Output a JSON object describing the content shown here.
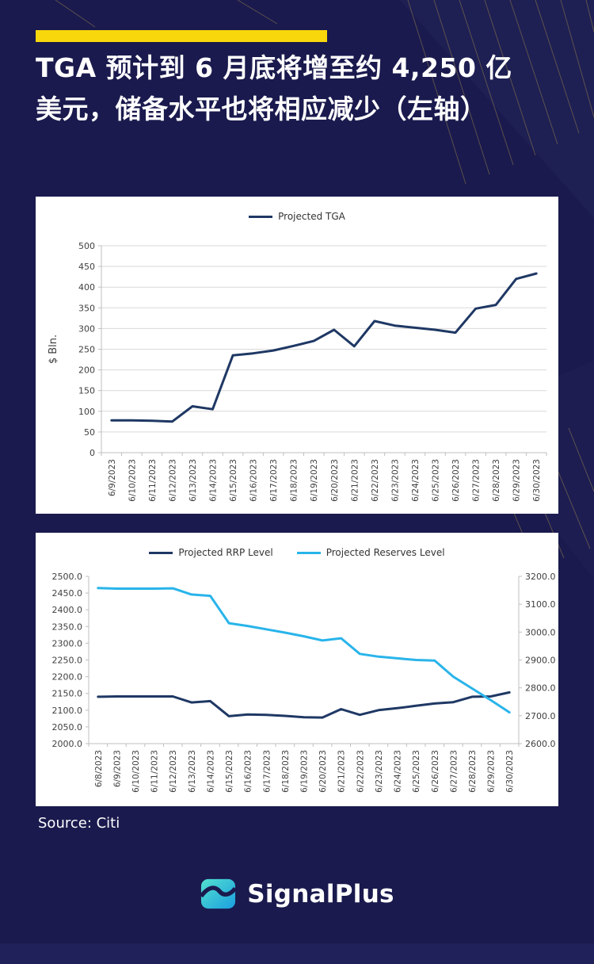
{
  "header": {
    "title": "TGA 预计到 6 月底将增至约 4,250 亿美元，储备水平也将相应减少（左轴）"
  },
  "footer": {
    "source": "Source: Citi",
    "brand": "SignalPlus"
  },
  "colors": {
    "background": "#1a1a4e",
    "accent_bar": "#f8d70c",
    "panel": "#ffffff",
    "grid": "#d9d9d9",
    "axis_text": "#404040",
    "tga": "#1f3864",
    "rrp": "#1f3864",
    "reserves": "#29b4ea",
    "deco_gold": "#a8924a",
    "deco_navy": "#23265c",
    "logo_teal_light": "#53e0cf",
    "logo_teal_dark": "#1b9fe0"
  },
  "chart_data": [
    {
      "type": "line",
      "svg_name": "tga-chart",
      "title": "",
      "ylabel": "$ Bln.",
      "grid": true,
      "legend_position": "top",
      "categories": [
        "6/9/2023",
        "6/10/2023",
        "6/11/2023",
        "6/12/2023",
        "6/13/2023",
        "6/14/2023",
        "6/15/2023",
        "6/16/2023",
        "6/17/2023",
        "6/18/2023",
        "6/19/2023",
        "6/20/2023",
        "6/21/2023",
        "6/22/2023",
        "6/23/2023",
        "6/24/2023",
        "6/25/2023",
        "6/26/2023",
        "6/27/2023",
        "6/28/2023",
        "6/29/2023",
        "6/30/2023"
      ],
      "axes": {
        "left": {
          "min": 0,
          "max": 500,
          "ticks": [
            "0",
            "50",
            "100",
            "150",
            "200",
            "250",
            "300",
            "350",
            "400",
            "450",
            "500"
          ]
        }
      },
      "series": [
        {
          "name": "Projected TGA",
          "axis": "left",
          "color_key": "tga",
          "values": [
            78,
            78,
            77,
            75,
            112,
            105,
            235,
            240,
            247,
            258,
            270,
            297,
            257,
            318,
            307,
            302,
            297,
            290,
            348,
            357,
            420,
            433
          ]
        }
      ]
    },
    {
      "type": "line",
      "svg_name": "rrp-reserves-chart",
      "title": "",
      "ylabel": "",
      "grid": false,
      "legend_position": "top",
      "categories": [
        "6/8/2023",
        "6/9/2023",
        "6/10/2023",
        "6/11/2023",
        "6/12/2023",
        "6/13/2023",
        "6/14/2023",
        "6/15/2023",
        "6/16/2023",
        "6/17/2023",
        "6/18/2023",
        "6/19/2023",
        "6/20/2023",
        "6/21/2023",
        "6/22/2023",
        "6/23/2023",
        "6/24/2023",
        "6/25/2023",
        "6/26/2023",
        "6/27/2023",
        "6/28/2023",
        "6/29/2023",
        "6/30/2023"
      ],
      "axes": {
        "left": {
          "min": 2000,
          "max": 2500,
          "ticks": [
            "2000.0",
            "2050.0",
            "2100.0",
            "2150.0",
            "2200.0",
            "2250.0",
            "2300.0",
            "2350.0",
            "2400.0",
            "2450.0",
            "2500.0"
          ]
        },
        "right": {
          "min": 2600,
          "max": 3200,
          "ticks": [
            "2600.0",
            "2700.0",
            "2800.0",
            "2900.0",
            "3000.0",
            "3100.0",
            "3200.0"
          ]
        }
      },
      "series": [
        {
          "name": "Projected RRP Level",
          "axis": "left",
          "color_key": "rrp",
          "values": [
            2140,
            2141,
            2141,
            2141,
            2141,
            2123,
            2127,
            2082,
            2087,
            2086,
            2083,
            2079,
            2078,
            2103,
            2086,
            2100,
            2106,
            2113,
            2120,
            2124,
            2140,
            2141,
            2153
          ]
        },
        {
          "name": "Projected Reserves Level",
          "axis": "right",
          "color_key": "reserves",
          "values": [
            3158,
            3156,
            3156,
            3156,
            3157,
            3135,
            3130,
            3032,
            3022,
            3010,
            2998,
            2985,
            2970,
            2978,
            2922,
            2912,
            2906,
            2900,
            2898,
            2840,
            2798,
            2756,
            2712
          ]
        }
      ]
    }
  ]
}
